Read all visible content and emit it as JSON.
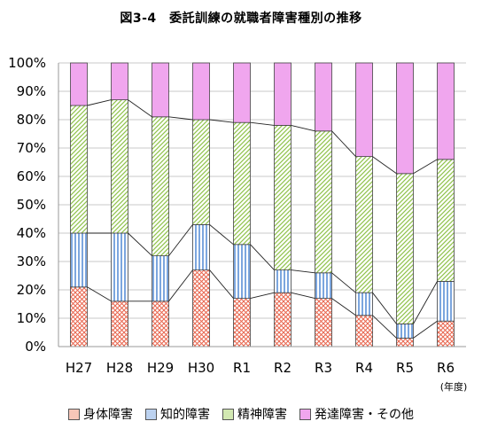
{
  "chart_data": {
    "type": "bar",
    "stacked": true,
    "title": "図3-4　委託訓練の就職者障害種別の推移",
    "categories": [
      "H27",
      "H28",
      "H29",
      "H30",
      "R1",
      "R2",
      "R3",
      "R4",
      "R5",
      "R6"
    ],
    "unit_label": "(年度)",
    "ylim": [
      0,
      100
    ],
    "yticks": [
      "0%",
      "10%",
      "20%",
      "30%",
      "40%",
      "50%",
      "60%",
      "70%",
      "80%",
      "90%",
      "100%"
    ],
    "series": [
      {
        "name": "身体障害",
        "values": [
          21,
          16,
          16,
          27,
          17,
          19,
          17,
          11,
          3,
          9
        ]
      },
      {
        "name": "知的障害",
        "values": [
          19,
          24,
          16,
          16,
          19,
          8,
          9,
          8,
          5,
          14
        ]
      },
      {
        "name": "精神障害",
        "values": [
          45,
          47,
          49,
          37,
          43,
          51,
          50,
          48,
          53,
          43
        ]
      },
      {
        "name": "発達障害・その他",
        "values": [
          15,
          13,
          19,
          20,
          21,
          22,
          24,
          33,
          39,
          34
        ]
      }
    ],
    "legend_position": "bottom",
    "grid": true,
    "colors": {
      "physical": "#e8664e",
      "intellectual": "#5b8fd6",
      "mental": "#8fc24a",
      "developmental": "#f0a6ee"
    }
  }
}
